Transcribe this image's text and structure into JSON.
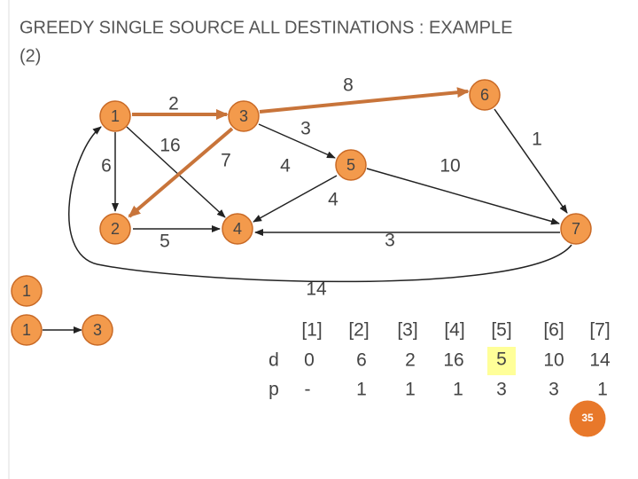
{
  "header": {
    "title_line1": "GREEDY SINGLE SOURCE ALL DESTINATIONS : EXAMPLE",
    "title_line2": "(2)"
  },
  "nodes": [
    "1",
    "3",
    "6",
    "5",
    "2",
    "4",
    "7"
  ],
  "edge_labels": [
    "2",
    "16",
    "6",
    "7",
    "8",
    "3",
    "4",
    "1",
    "10",
    "4",
    "5",
    "3",
    "14"
  ],
  "paths": [
    [
      "1"
    ],
    [
      "1",
      "3"
    ]
  ],
  "table": {
    "header": [
      "[1]",
      "[2]",
      "[3]",
      "[4]",
      "[5]",
      "[6]",
      "[7]"
    ],
    "rows": [
      [
        "d",
        "0",
        "6",
        "2",
        "16",
        "5",
        "10",
        "14"
      ],
      [
        "p",
        "-",
        "1",
        "1",
        "1",
        "3",
        "3",
        "1"
      ]
    ]
  },
  "page_number": "35"
}
